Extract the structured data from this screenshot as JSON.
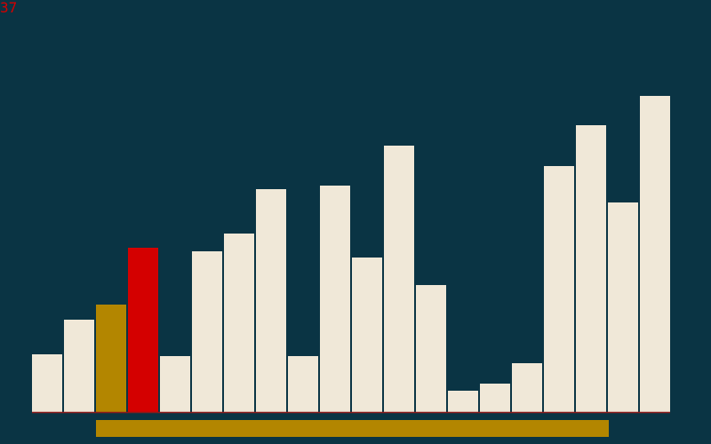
{
  "counter": {
    "value": "37",
    "color": "#d40000"
  },
  "colors": {
    "background": "#0a3444",
    "bar_default": "#f0e8d8",
    "bar_compare": "#b38600",
    "bar_active": "#d40000",
    "baseline": "#8b1a1a",
    "range_marker": "#b38600"
  },
  "chart_data": {
    "type": "bar",
    "values": [
      65,
      104,
      121,
      185,
      63,
      181,
      201,
      251,
      63,
      255,
      174,
      300,
      143,
      24,
      32,
      55,
      277,
      323,
      236,
      356
    ],
    "highlighted": {
      "compare_index": 2,
      "active_index": 3
    },
    "range": {
      "start_index": 2,
      "end_index": 18
    },
    "ylim": [
      0,
      356
    ]
  }
}
